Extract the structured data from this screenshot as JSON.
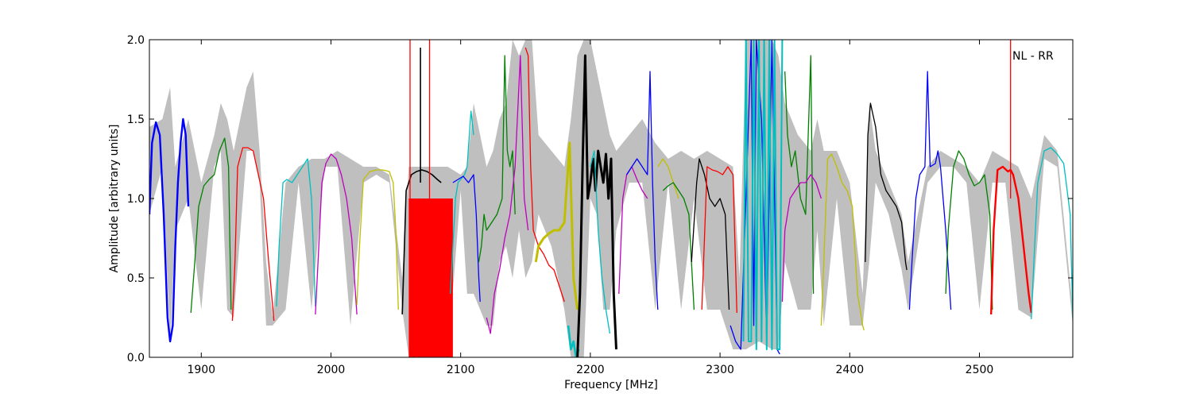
{
  "chart_data": {
    "type": "line",
    "xlabel": "Frequency [MHz]",
    "ylabel": "Amplitude [arbitrary units]",
    "xlim": [
      1860,
      2572
    ],
    "ylim": [
      0,
      2.0
    ],
    "xticks": [
      {
        "value": 1900,
        "label": "1900"
      },
      {
        "value": 2000,
        "label": "2000"
      },
      {
        "value": 2100,
        "label": "2100"
      },
      {
        "value": 2200,
        "label": "2200"
      },
      {
        "value": 2300,
        "label": "2300"
      },
      {
        "value": 2400,
        "label": "2400"
      },
      {
        "value": 2500,
        "label": "2500"
      }
    ],
    "yticks": [
      {
        "value": 0.0,
        "label": "0.0"
      },
      {
        "value": 0.5,
        "label": "0.5"
      },
      {
        "value": 1.0,
        "label": "1.0"
      },
      {
        "value": 1.5,
        "label": "1.5"
      },
      {
        "value": 2.0,
        "label": "2.0"
      }
    ],
    "annotation": "NL - RR",
    "grid": false,
    "colors": {
      "envelope": "#bfbfbf",
      "blue": "#0000ff",
      "green": "#008000",
      "red": "#ff0000",
      "cyan": "#00bfbf",
      "magenta": "#bf00bf",
      "yellow": "#bfbf00",
      "black": "#000000"
    },
    "envelope": {
      "x": [
        1860,
        1870,
        1876,
        1880,
        1890,
        1900,
        1910,
        1915,
        1920,
        1925,
        1935,
        1940,
        1945,
        1950,
        1955,
        1965,
        1975,
        1985,
        1995,
        2005,
        2015,
        2025,
        2035,
        2045,
        2055,
        2060,
        2070,
        2080,
        2090,
        2100,
        2105,
        2110,
        2115,
        2120,
        2125,
        2130,
        2135,
        2140,
        2145,
        2150,
        2155,
        2160,
        2170,
        2180,
        2185,
        2190,
        2195,
        2200,
        2205,
        2210,
        2215,
        2220,
        2230,
        2240,
        2250,
        2260,
        2270,
        2280,
        2290,
        2300,
        2310,
        2315,
        2320,
        2330,
        2340,
        2345,
        2350,
        2360,
        2370,
        2375,
        2380,
        2390,
        2400,
        2410,
        2415,
        2420,
        2430,
        2440,
        2445,
        2460,
        2470,
        2480,
        2490,
        2500,
        2510,
        2520,
        2530,
        2540,
        2550,
        2560,
        2572
      ],
      "upper": [
        1.45,
        1.5,
        1.7,
        1.2,
        1.5,
        1.1,
        1.4,
        1.6,
        1.5,
        1.3,
        1.7,
        1.8,
        1.3,
        0.6,
        0.25,
        1.1,
        1.2,
        1.25,
        1.25,
        1.3,
        1.25,
        1.2,
        1.2,
        1.15,
        0.5,
        1.2,
        1.2,
        1.2,
        1.2,
        1.15,
        1.2,
        1.6,
        1.4,
        1.2,
        1.3,
        1.5,
        1.6,
        2.0,
        1.9,
        2.0,
        2.0,
        1.4,
        1.3,
        1.2,
        1.5,
        1.9,
        2.0,
        2.0,
        1.8,
        1.6,
        1.4,
        1.3,
        1.4,
        1.5,
        1.35,
        1.25,
        1.3,
        1.25,
        1.3,
        1.25,
        1.2,
        0.5,
        2.0,
        2.0,
        2.0,
        1.9,
        1.6,
        1.4,
        1.3,
        1.5,
        1.3,
        1.3,
        1.1,
        0.4,
        1.6,
        1.3,
        1.1,
        0.9,
        0.6,
        1.2,
        1.3,
        1.25,
        1.2,
        1.1,
        1.3,
        1.25,
        1.2,
        1.0,
        1.4,
        1.3,
        0.3
      ],
      "lower": [
        0.9,
        1.2,
        0.1,
        0.8,
        1.0,
        0.3,
        1.2,
        1.3,
        0.3,
        0.25,
        1.3,
        1.3,
        1.1,
        0.2,
        0.2,
        0.3,
        1.1,
        0.3,
        1.2,
        1.2,
        0.2,
        1.1,
        1.15,
        1.1,
        0.3,
        0.0,
        0.0,
        0.0,
        0.0,
        1.05,
        0.4,
        0.4,
        0.3,
        0.2,
        0.2,
        0.6,
        0.7,
        0.5,
        0.8,
        0.5,
        0.6,
        0.9,
        0.7,
        0.3,
        0.0,
        0.0,
        0.0,
        1.0,
        0.9,
        0.3,
        0.3,
        0.8,
        1.1,
        1.1,
        0.3,
        1.1,
        0.3,
        1.0,
        0.3,
        0.3,
        0.05,
        0.05,
        0.05,
        0.1,
        0.05,
        0.05,
        0.6,
        0.3,
        0.3,
        0.8,
        0.2,
        1.0,
        0.2,
        0.2,
        0.6,
        1.1,
        0.9,
        0.55,
        0.3,
        1.1,
        1.2,
        1.2,
        1.1,
        0.3,
        1.1,
        1.1,
        0.3,
        0.25,
        1.25,
        1.2,
        0.2
      ]
    },
    "series": [
      {
        "color": "blue",
        "width": 2.4,
        "x": [
          1860,
          1862,
          1865,
          1868,
          1871,
          1874,
          1876,
          1878,
          1880,
          1882,
          1884,
          1886,
          1888,
          1890
        ],
        "y": [
          0.9,
          1.35,
          1.48,
          1.4,
          0.9,
          0.25,
          0.1,
          0.2,
          0.7,
          1.1,
          1.35,
          1.5,
          1.4,
          0.95
        ]
      },
      {
        "color": "green",
        "width": 1.3,
        "x": [
          1892,
          1895,
          1898,
          1902,
          1906,
          1910,
          1914,
          1918,
          1921,
          1923
        ],
        "y": [
          0.28,
          0.6,
          0.95,
          1.08,
          1.12,
          1.15,
          1.3,
          1.38,
          1.2,
          0.3
        ]
      },
      {
        "color": "red",
        "width": 1.3,
        "x": [
          1924,
          1926,
          1928,
          1932,
          1936,
          1940,
          1944,
          1948,
          1952,
          1956
        ],
        "y": [
          0.23,
          0.6,
          1.2,
          1.32,
          1.32,
          1.3,
          1.15,
          1.0,
          0.6,
          0.23
        ]
      },
      {
        "color": "cyan",
        "width": 1.3,
        "x": [
          1958,
          1960,
          1963,
          1966,
          1970,
          1974,
          1978,
          1982,
          1985,
          1988
        ],
        "y": [
          0.32,
          0.7,
          1.1,
          1.12,
          1.1,
          1.15,
          1.2,
          1.25,
          1.0,
          0.32
        ]
      },
      {
        "color": "magenta",
        "width": 1.3,
        "x": [
          1988,
          1990,
          1993,
          1996,
          2000,
          2004,
          2008,
          2012,
          2016,
          2020
        ],
        "y": [
          0.27,
          0.6,
          1.1,
          1.22,
          1.28,
          1.25,
          1.15,
          1.0,
          0.75,
          0.27
        ]
      },
      {
        "color": "yellow",
        "width": 1.3,
        "x": [
          2020,
          2022,
          2025,
          2030,
          2035,
          2040,
          2045,
          2048,
          2050,
          2052
        ],
        "y": [
          0.33,
          0.7,
          1.12,
          1.17,
          1.18,
          1.18,
          1.17,
          1.1,
          0.8,
          0.3
        ]
      },
      {
        "color": "black",
        "width": 1.6,
        "x": [
          2055,
          2058,
          2062,
          2066,
          2070,
          2074,
          2078,
          2082,
          2085
        ],
        "y": [
          0.27,
          1.05,
          1.15,
          1.17,
          1.18,
          1.17,
          1.15,
          1.12,
          1.1
        ]
      },
      {
        "color": "cyan",
        "width": 1.3,
        "x": [
          2092,
          2094,
          2096,
          2098,
          2100,
          2103,
          2105,
          2108,
          2110
        ],
        "y": [
          0.4,
          0.7,
          1.0,
          1.1,
          1.12,
          1.15,
          1.2,
          1.55,
          1.4
        ]
      },
      {
        "color": "blue",
        "width": 1.3,
        "x": [
          2094,
          2098,
          2102,
          2106,
          2110,
          2112,
          2114,
          2115
        ],
        "y": [
          1.1,
          1.12,
          1.14,
          1.1,
          1.15,
          0.9,
          0.5,
          0.35
        ]
      },
      {
        "color": "green",
        "width": 1.3,
        "x": [
          2114,
          2116,
          2118,
          2120,
          2124,
          2128,
          2132,
          2134,
          2136,
          2138,
          2140,
          2142
        ],
        "y": [
          0.6,
          0.7,
          0.9,
          0.8,
          0.85,
          0.9,
          1.0,
          1.9,
          1.3,
          1.2,
          1.3,
          0.9
        ]
      },
      {
        "color": "magenta",
        "width": 1.3,
        "x": [
          2120,
          2123,
          2126,
          2130,
          2134,
          2138,
          2142,
          2146,
          2149,
          2152
        ],
        "y": [
          0.25,
          0.15,
          0.4,
          0.55,
          0.75,
          0.9,
          1.2,
          1.9,
          1.0,
          0.8
        ]
      },
      {
        "color": "red",
        "width": 1.3,
        "x": [
          2150,
          2152,
          2154,
          2156,
          2160,
          2164,
          2168,
          2172,
          2176,
          2180
        ],
        "y": [
          1.95,
          1.9,
          1.2,
          0.8,
          0.7,
          0.65,
          0.58,
          0.55,
          0.45,
          0.35
        ]
      },
      {
        "color": "yellow",
        "width": 3.0,
        "x": [
          2158,
          2160,
          2164,
          2168,
          2172,
          2176,
          2180,
          2184,
          2187,
          2190
        ],
        "y": [
          0.6,
          0.7,
          0.75,
          0.78,
          0.8,
          0.8,
          0.85,
          1.35,
          0.5,
          0.3
        ]
      },
      {
        "color": "cyan",
        "width": 2.6,
        "x": [
          2183,
          2185,
          2187,
          2189,
          2191
        ],
        "y": [
          0.2,
          0.05,
          0.1,
          0.0,
          0.05
        ]
      },
      {
        "color": "black",
        "width": 3.0,
        "x": [
          2190,
          2192,
          2194,
          2196,
          2198,
          2200,
          2202,
          2204,
          2206,
          2208,
          2210,
          2212,
          2214,
          2216,
          2218,
          2220
        ],
        "y": [
          0.0,
          0.4,
          1.2,
          1.9,
          1.0,
          1.1,
          1.25,
          1.05,
          1.3,
          1.2,
          1.1,
          1.28,
          1.0,
          1.25,
          0.4,
          0.05
        ]
      },
      {
        "color": "cyan",
        "width": 1.3,
        "x": [
          2200,
          2203,
          2206,
          2209,
          2212,
          2215
        ],
        "y": [
          1.2,
          1.3,
          0.8,
          0.5,
          0.3,
          0.15
        ]
      },
      {
        "color": "magenta",
        "width": 1.3,
        "x": [
          2222,
          2225,
          2228,
          2232,
          2236,
          2240,
          2244
        ],
        "y": [
          0.4,
          1.0,
          1.15,
          1.2,
          1.12,
          1.05,
          1.0
        ]
      },
      {
        "color": "blue",
        "width": 1.3,
        "x": [
          2228,
          2232,
          2236,
          2240,
          2244,
          2246,
          2248,
          2250,
          2252
        ],
        "y": [
          1.15,
          1.2,
          1.25,
          1.2,
          1.15,
          1.8,
          1.1,
          0.6,
          0.3
        ]
      },
      {
        "color": "yellow",
        "width": 1.3,
        "x": [
          2252,
          2256,
          2260,
          2264,
          2268
        ],
        "y": [
          1.2,
          1.25,
          1.2,
          1.1,
          1.0
        ]
      },
      {
        "color": "green",
        "width": 1.3,
        "x": [
          2256,
          2260,
          2264,
          2268,
          2272,
          2276,
          2280
        ],
        "y": [
          1.05,
          1.08,
          1.1,
          1.05,
          1.0,
          0.9,
          0.3
        ]
      },
      {
        "color": "black",
        "width": 1.3,
        "x": [
          2278,
          2282,
          2284,
          2288,
          2292,
          2296,
          2300,
          2304,
          2307
        ],
        "y": [
          0.6,
          1.1,
          1.25,
          1.15,
          1.0,
          0.95,
          1.0,
          0.9,
          0.3
        ]
      },
      {
        "color": "red",
        "width": 1.3,
        "x": [
          2286,
          2290,
          2294,
          2298,
          2302,
          2306,
          2310,
          2313
        ],
        "y": [
          0.3,
          1.2,
          1.18,
          1.17,
          1.15,
          1.2,
          1.15,
          0.28
        ]
      },
      {
        "color": "blue",
        "width": 1.3,
        "x": [
          2308,
          2312,
          2316,
          2320,
          2324,
          2326,
          2328,
          2332,
          2336,
          2340,
          2344,
          2346
        ],
        "y": [
          0.2,
          0.1,
          0.05,
          1.0,
          2.0,
          0.2,
          2.0,
          1.5,
          0.1,
          2.0,
          0.05,
          0.02
        ]
      },
      {
        "color": "cyan",
        "width": 2.0,
        "x": [
          2318,
          2320,
          2322,
          2324,
          2326,
          2328,
          2330,
          2332,
          2334,
          2336,
          2338,
          2340,
          2342,
          2344,
          2346,
          2348
        ],
        "y": [
          0.1,
          2.0,
          0.1,
          0.1,
          2.0,
          0.05,
          2.0,
          0.1,
          2.0,
          0.05,
          2.0,
          0.05,
          2.0,
          0.05,
          0.05,
          2.0
        ]
      },
      {
        "color": "green",
        "width": 1.3,
        "x": [
          2350,
          2352,
          2355,
          2358,
          2362,
          2366,
          2370,
          2372
        ],
        "y": [
          1.8,
          1.4,
          1.2,
          1.3,
          1.0,
          0.9,
          1.9,
          0.4
        ]
      },
      {
        "color": "magenta",
        "width": 1.3,
        "x": [
          2348,
          2350,
          2354,
          2358,
          2362,
          2366,
          2370,
          2374,
          2378
        ],
        "y": [
          0.35,
          0.8,
          1.0,
          1.05,
          1.1,
          1.1,
          1.15,
          1.1,
          1.0
        ]
      },
      {
        "color": "yellow",
        "width": 1.3,
        "x": [
          2378,
          2380,
          2383,
          2386,
          2390,
          2394,
          2398,
          2402,
          2406,
          2410,
          2411
        ],
        "y": [
          0.2,
          0.6,
          1.25,
          1.28,
          1.2,
          1.1,
          1.05,
          0.95,
          0.4,
          0.2,
          0.17
        ]
      },
      {
        "color": "black",
        "width": 1.3,
        "x": [
          2412,
          2414,
          2416,
          2420,
          2424,
          2428,
          2432,
          2436,
          2440,
          2443,
          2444
        ],
        "y": [
          0.6,
          1.4,
          1.6,
          1.45,
          1.15,
          1.05,
          1.0,
          0.95,
          0.85,
          0.6,
          0.55
        ]
      },
      {
        "color": "blue",
        "width": 1.3,
        "x": [
          2446,
          2448,
          2451,
          2454,
          2458,
          2460,
          2462,
          2466,
          2468,
          2470,
          2474,
          2478
        ],
        "y": [
          0.3,
          0.6,
          1.0,
          1.15,
          1.2,
          1.8,
          1.2,
          1.22,
          1.3,
          1.2,
          0.8,
          0.3
        ]
      },
      {
        "color": "green",
        "width": 1.3,
        "x": [
          2474,
          2476,
          2480,
          2484,
          2488,
          2492,
          2496,
          2500,
          2504,
          2508,
          2510
        ],
        "y": [
          0.4,
          0.8,
          1.2,
          1.3,
          1.25,
          1.15,
          1.08,
          1.1,
          1.15,
          0.9,
          0.3
        ]
      },
      {
        "color": "red",
        "width": 2.4,
        "x": [
          2509,
          2511,
          2514,
          2518,
          2522,
          2524,
          2526,
          2530,
          2534,
          2538,
          2540
        ],
        "y": [
          0.27,
          0.8,
          1.18,
          1.2,
          1.17,
          1.18,
          1.15,
          1.0,
          0.7,
          0.4,
          0.28
        ]
      },
      {
        "color": "cyan",
        "width": 1.3,
        "x": [
          2540,
          2542,
          2545,
          2550,
          2555,
          2560,
          2565,
          2570,
          2572
        ],
        "y": [
          0.24,
          0.6,
          1.1,
          1.3,
          1.32,
          1.28,
          1.22,
          0.9,
          0.25
        ]
      },
      {
        "color": "red",
        "width": 1.3,
        "x": [
          2524,
          2524
        ],
        "y": [
          1.0,
          2.0
        ]
      },
      {
        "color": "red",
        "width": 1.3,
        "x": [
          2061,
          2061
        ],
        "y": [
          0.0,
          2.0
        ]
      },
      {
        "color": "black",
        "width": 1.6,
        "x": [
          2069,
          2069
        ],
        "y": [
          1.1,
          1.95
        ]
      },
      {
        "color": "red",
        "width": 1.3,
        "x": [
          2076,
          2076
        ],
        "y": [
          0.0,
          2.0
        ]
      }
    ],
    "fill_bands": [
      {
        "color": "red",
        "x": [
          2060,
          2094
        ],
        "y": [
          0.0,
          1.0
        ]
      }
    ]
  }
}
